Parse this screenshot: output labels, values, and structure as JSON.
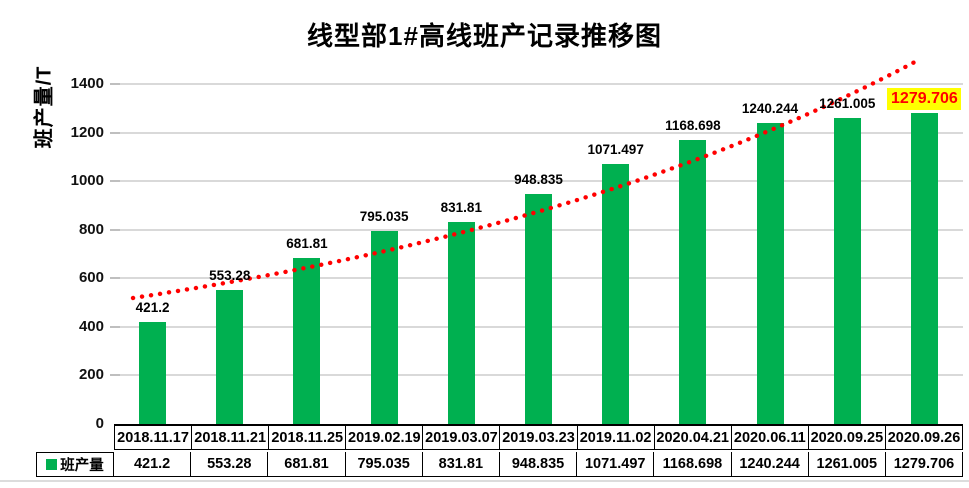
{
  "chart_data": {
    "type": "bar",
    "title": "线型部1#高线班产记录推移图",
    "ylabel": "班产量/T",
    "xlabel": "",
    "categories": [
      "2018.11.17",
      "2018.11.21",
      "2018.11.25",
      "2019.02.19",
      "2019.03.07",
      "2019.03.23",
      "2019.11.02",
      "2020.04.21",
      "2020.06.11",
      "2020.09.25",
      "2020.09.26"
    ],
    "series": [
      {
        "name": "班产量",
        "color": "#00B050",
        "values": [
          421.2,
          553.28,
          681.81,
          795.035,
          831.81,
          948.835,
          1071.497,
          1168.698,
          1240.244,
          1261.005,
          1279.706
        ]
      }
    ],
    "value_labels": [
      "421.2",
      "553.28",
      "681.81",
      "795.035",
      "831.81",
      "948.835",
      "1071.497",
      "1168.698",
      "1240.244",
      "1261.005",
      "1279.706"
    ],
    "ylim": [
      0,
      1400
    ],
    "yticks": [
      0,
      200,
      400,
      600,
      800,
      1000,
      1200,
      1400
    ],
    "grid": true,
    "data_table": true,
    "legend_position": "data-table-left",
    "highlight": {
      "index": 10,
      "background": "#FFFF00",
      "text_color": "#FF0000"
    },
    "trendline": {
      "style": "dotted",
      "color": "#FF0000",
      "shape": "exponential-rising"
    }
  },
  "colors": {
    "bar": "#00B050",
    "trend": "#FF0000",
    "gridline": "#D9D9D9",
    "table_border": "#000000",
    "highlight_bg": "#FFFF00",
    "highlight_text": "#FF0000",
    "background": "#FFFFFF"
  }
}
